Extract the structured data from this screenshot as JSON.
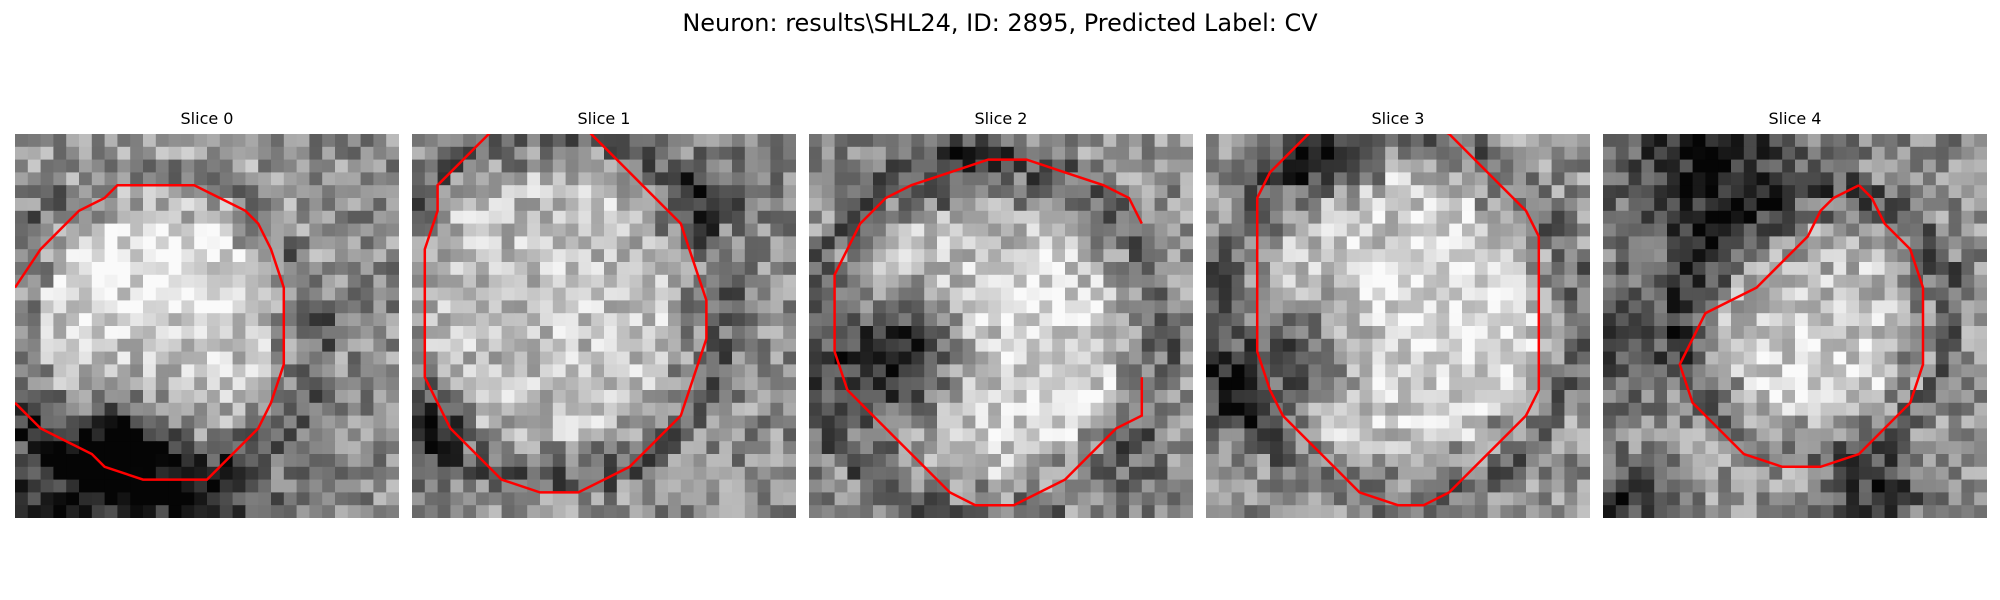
{
  "figure": {
    "title": "Neuron: results\\SHL24, ID: 2895, Predicted Label: CV"
  },
  "slices": [
    {
      "title": "Slice 0",
      "seed": 11,
      "contour": [
        [
          0,
          12
        ],
        [
          2,
          9
        ],
        [
          3,
          8
        ],
        [
          5,
          6
        ],
        [
          7,
          5
        ],
        [
          8,
          4
        ],
        [
          11,
          4
        ],
        [
          14,
          4
        ],
        [
          16,
          5
        ],
        [
          18,
          6
        ],
        [
          19,
          7
        ],
        [
          20,
          9
        ],
        [
          21,
          12
        ],
        [
          21,
          15
        ],
        [
          21,
          18
        ],
        [
          20,
          21
        ],
        [
          19,
          23
        ],
        [
          17,
          25
        ],
        [
          15,
          27
        ],
        [
          13,
          27
        ],
        [
          10,
          27
        ],
        [
          7,
          26
        ],
        [
          6,
          25
        ],
        [
          4,
          24
        ],
        [
          2,
          23
        ],
        [
          1,
          22
        ],
        [
          0,
          21
        ]
      ],
      "dark": [
        [
          8,
          24,
          2.6,
          0.55
        ],
        [
          3,
          28,
          5,
          0.35
        ],
        [
          14,
          29,
          4,
          0.35
        ]
      ],
      "bright": [
        [
          11,
          9,
          6,
          0.45
        ]
      ]
    },
    {
      "title": "Slice 1",
      "seed": 23,
      "contour": [
        [
          7,
          -1
        ],
        [
          5,
          1
        ],
        [
          4,
          2
        ],
        [
          2,
          4
        ],
        [
          2,
          6
        ],
        [
          1,
          9
        ],
        [
          1,
          12
        ],
        [
          1,
          15
        ],
        [
          1,
          17
        ],
        [
          1,
          19
        ],
        [
          2,
          21
        ],
        [
          3,
          23
        ],
        [
          5,
          25
        ],
        [
          7,
          27
        ],
        [
          10,
          28
        ],
        [
          13,
          28
        ],
        [
          15,
          27
        ],
        [
          17,
          26
        ],
        [
          19,
          24
        ],
        [
          21,
          22
        ],
        [
          22,
          19
        ],
        [
          23,
          16
        ],
        [
          23,
          13
        ],
        [
          22,
          10
        ],
        [
          21,
          7
        ],
        [
          19,
          5
        ],
        [
          17,
          3
        ],
        [
          15,
          1
        ],
        [
          14,
          0
        ],
        [
          13,
          -1
        ]
      ],
      "dark": [
        [
          1,
          22,
          2.5,
          0.3
        ],
        [
          23,
          4,
          2.2,
          0.25
        ]
      ],
      "bright": [
        [
          12,
          13,
          8,
          0.15
        ]
      ]
    },
    {
      "title": "Slice 2",
      "seed": 37,
      "contour": [
        [
          26,
          7
        ],
        [
          25,
          5
        ],
        [
          23,
          4
        ],
        [
          20,
          3
        ],
        [
          17,
          2
        ],
        [
          14,
          2
        ],
        [
          11,
          3
        ],
        [
          8,
          4
        ],
        [
          6,
          5
        ],
        [
          4,
          7
        ],
        [
          3,
          9
        ],
        [
          2,
          11
        ],
        [
          2,
          14
        ],
        [
          2,
          17
        ],
        [
          3,
          20
        ],
        [
          5,
          22
        ],
        [
          7,
          24
        ],
        [
          9,
          26
        ],
        [
          11,
          28
        ],
        [
          13,
          29
        ],
        [
          14,
          29
        ],
        [
          16,
          29
        ],
        [
          18,
          28
        ],
        [
          20,
          27
        ],
        [
          22,
          25
        ],
        [
          24,
          23
        ],
        [
          26,
          22
        ],
        [
          26,
          19
        ]
      ],
      "dark": [
        [
          6,
          17,
          3.4,
          0.7
        ],
        [
          12,
          2,
          3,
          0.25
        ],
        [
          25,
          26,
          2,
          0.2
        ]
      ],
      "bright": [
        [
          16,
          16,
          8,
          0.3
        ]
      ]
    },
    {
      "title": "Slice 3",
      "seed": 51,
      "contour": [
        [
          9,
          -1
        ],
        [
          7,
          1
        ],
        [
          5,
          3
        ],
        [
          4,
          5
        ],
        [
          4,
          8
        ],
        [
          4,
          11
        ],
        [
          4,
          14
        ],
        [
          4,
          17
        ],
        [
          5,
          20
        ],
        [
          6,
          22
        ],
        [
          8,
          24
        ],
        [
          10,
          26
        ],
        [
          12,
          28
        ],
        [
          15,
          29
        ],
        [
          17,
          29
        ],
        [
          19,
          28
        ],
        [
          21,
          26
        ],
        [
          23,
          24
        ],
        [
          25,
          22
        ],
        [
          26,
          20
        ],
        [
          26,
          17
        ],
        [
          26,
          14
        ],
        [
          26,
          11
        ],
        [
          26,
          8
        ],
        [
          25,
          6
        ],
        [
          23,
          4
        ],
        [
          21,
          2
        ],
        [
          19,
          0
        ],
        [
          17,
          -1
        ]
      ],
      "dark": [
        [
          7,
          17,
          3,
          0.45
        ],
        [
          8,
          1,
          2.5,
          0.35
        ],
        [
          1,
          20,
          2.5,
          0.3
        ]
      ],
      "bright": [
        [
          16,
          14,
          8,
          0.35
        ]
      ]
    },
    {
      "title": "Slice 4",
      "seed": 67,
      "contour": [
        [
          20,
          4
        ],
        [
          18,
          5
        ],
        [
          17,
          6
        ],
        [
          16,
          8
        ],
        [
          14,
          10
        ],
        [
          12,
          12
        ],
        [
          10,
          13
        ],
        [
          8,
          14
        ],
        [
          7,
          16
        ],
        [
          6,
          18
        ],
        [
          7,
          21
        ],
        [
          9,
          23
        ],
        [
          11,
          25
        ],
        [
          14,
          26
        ],
        [
          17,
          26
        ],
        [
          20,
          25
        ],
        [
          22,
          23
        ],
        [
          24,
          21
        ],
        [
          25,
          18
        ],
        [
          25,
          15
        ],
        [
          25,
          12
        ],
        [
          24,
          9
        ],
        [
          22,
          7
        ],
        [
          21,
          5
        ],
        [
          20,
          4
        ]
      ],
      "dark": [
        [
          8,
          3,
          5,
          0.45
        ],
        [
          2,
          16,
          3,
          0.3
        ],
        [
          21,
          27,
          2.5,
          0.4
        ],
        [
          1,
          28,
          2,
          0.35
        ]
      ],
      "bright": [
        [
          16,
          18,
          6,
          0.3
        ]
      ]
    }
  ]
}
